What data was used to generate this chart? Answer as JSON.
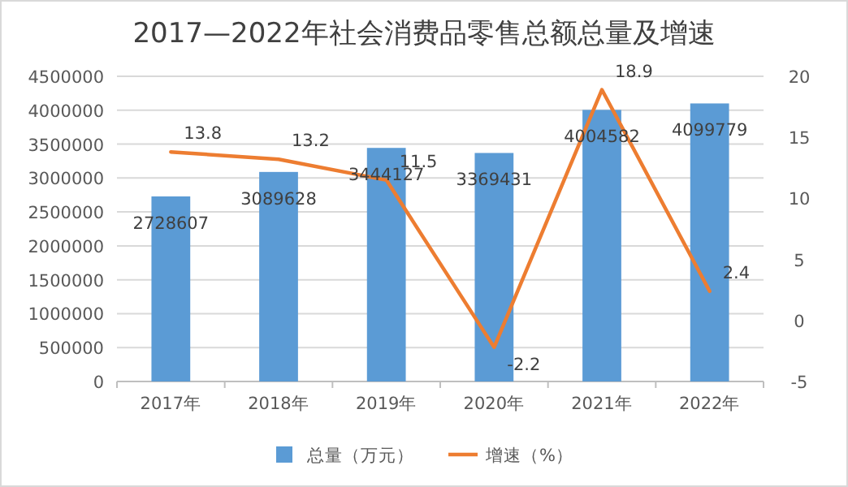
{
  "chart_data": {
    "type": "bar",
    "title": "2017—2022年社会消费品零售总额总量及增速",
    "categories": [
      "2017年",
      "2018年",
      "2019年",
      "2020年",
      "2021年",
      "2022年"
    ],
    "series": [
      {
        "name": "总量（万元）",
        "color": "#5b9bd5",
        "values": [
          2728607,
          3089628,
          3444127,
          3369431,
          4004582,
          4099779
        ]
      },
      {
        "name": "增速（%）",
        "type": "line",
        "axis": "y2",
        "color": "#ed7d31",
        "values": [
          13.8,
          13.2,
          11.5,
          -2.2,
          18.9,
          2.4
        ]
      }
    ],
    "ylim": [
      0,
      4500000
    ],
    "yticks": [
      0,
      500000,
      1000000,
      1500000,
      2000000,
      2500000,
      3000000,
      3500000,
      4000000,
      4500000
    ],
    "y2lim": [
      -5,
      20
    ],
    "y2ticks": [
      -5,
      0,
      5,
      10,
      15,
      20
    ],
    "grid": "y",
    "legend": "bottom",
    "data_labels": true,
    "marker": "none",
    "line_style": "solid"
  }
}
